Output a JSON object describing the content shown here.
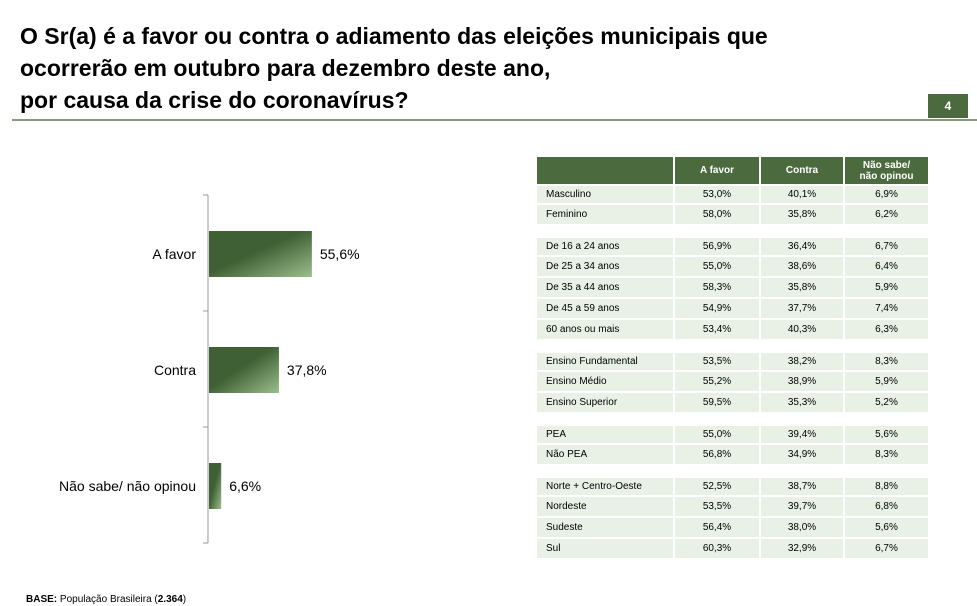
{
  "title_lines": [
    "O Sr(a) é a favor ou contra o adiamento das eleições municipais que",
    "ocorrerão em outubro para dezembro deste ano,",
    "por causa da crise do coronavírus?"
  ],
  "page_number": "4",
  "base": {
    "label": "BASE:",
    "text": "População Brasileira (",
    "n": "2.364",
    "close": ")"
  },
  "colors": {
    "accent": "#4b6b3f",
    "cell_bg": "#e9f1e6",
    "bar_dark": "#3f5f34",
    "bar_light": "#9cbf8c"
  },
  "chart_data": {
    "type": "bar",
    "orientation": "horizontal",
    "categories": [
      "A favor",
      "Contra",
      "Não sabe/ não opinou"
    ],
    "values": [
      55.6,
      37.8,
      6.6
    ],
    "value_labels": [
      "55,6%",
      "37,8%",
      "6,6%"
    ],
    "xlim": [
      0,
      100
    ]
  },
  "table": {
    "headers": [
      "",
      "A favor",
      "Contra",
      "Não sabe/\nnão opinou"
    ],
    "groups": [
      [
        [
          "Masculino",
          "53,0%",
          "40,1%",
          "6,9%"
        ],
        [
          "Feminino",
          "58,0%",
          "35,8%",
          "6,2%"
        ]
      ],
      [
        [
          "De 16 a 24 anos",
          "56,9%",
          "36,4%",
          "6,7%"
        ],
        [
          "De 25 a 34 anos",
          "55,0%",
          "38,6%",
          "6,4%"
        ],
        [
          "De 35 a 44 anos",
          "58,3%",
          "35,8%",
          "5,9%"
        ],
        [
          "De 45 a 59 anos",
          "54,9%",
          "37,7%",
          "7,4%"
        ],
        [
          "60 anos ou mais",
          "53,4%",
          "40,3%",
          "6,3%"
        ]
      ],
      [
        [
          "Ensino Fundamental",
          "53,5%",
          "38,2%",
          "8,3%"
        ],
        [
          "Ensino Médio",
          "55,2%",
          "38,9%",
          "5,9%"
        ],
        [
          "Ensino Superior",
          "59,5%",
          "35,3%",
          "5,2%"
        ]
      ],
      [
        [
          "PEA",
          "55,0%",
          "39,4%",
          "5,6%"
        ],
        [
          "Não PEA",
          "56,8%",
          "34,9%",
          "8,3%"
        ]
      ],
      [
        [
          "Norte + Centro-Oeste",
          "52,5%",
          "38,7%",
          "8,8%"
        ],
        [
          "Nordeste",
          "53,5%",
          "39,7%",
          "6,8%"
        ],
        [
          "Sudeste",
          "56,4%",
          "38,0%",
          "5,6%"
        ],
        [
          "Sul",
          "60,3%",
          "32,9%",
          "6,7%"
        ]
      ]
    ]
  }
}
